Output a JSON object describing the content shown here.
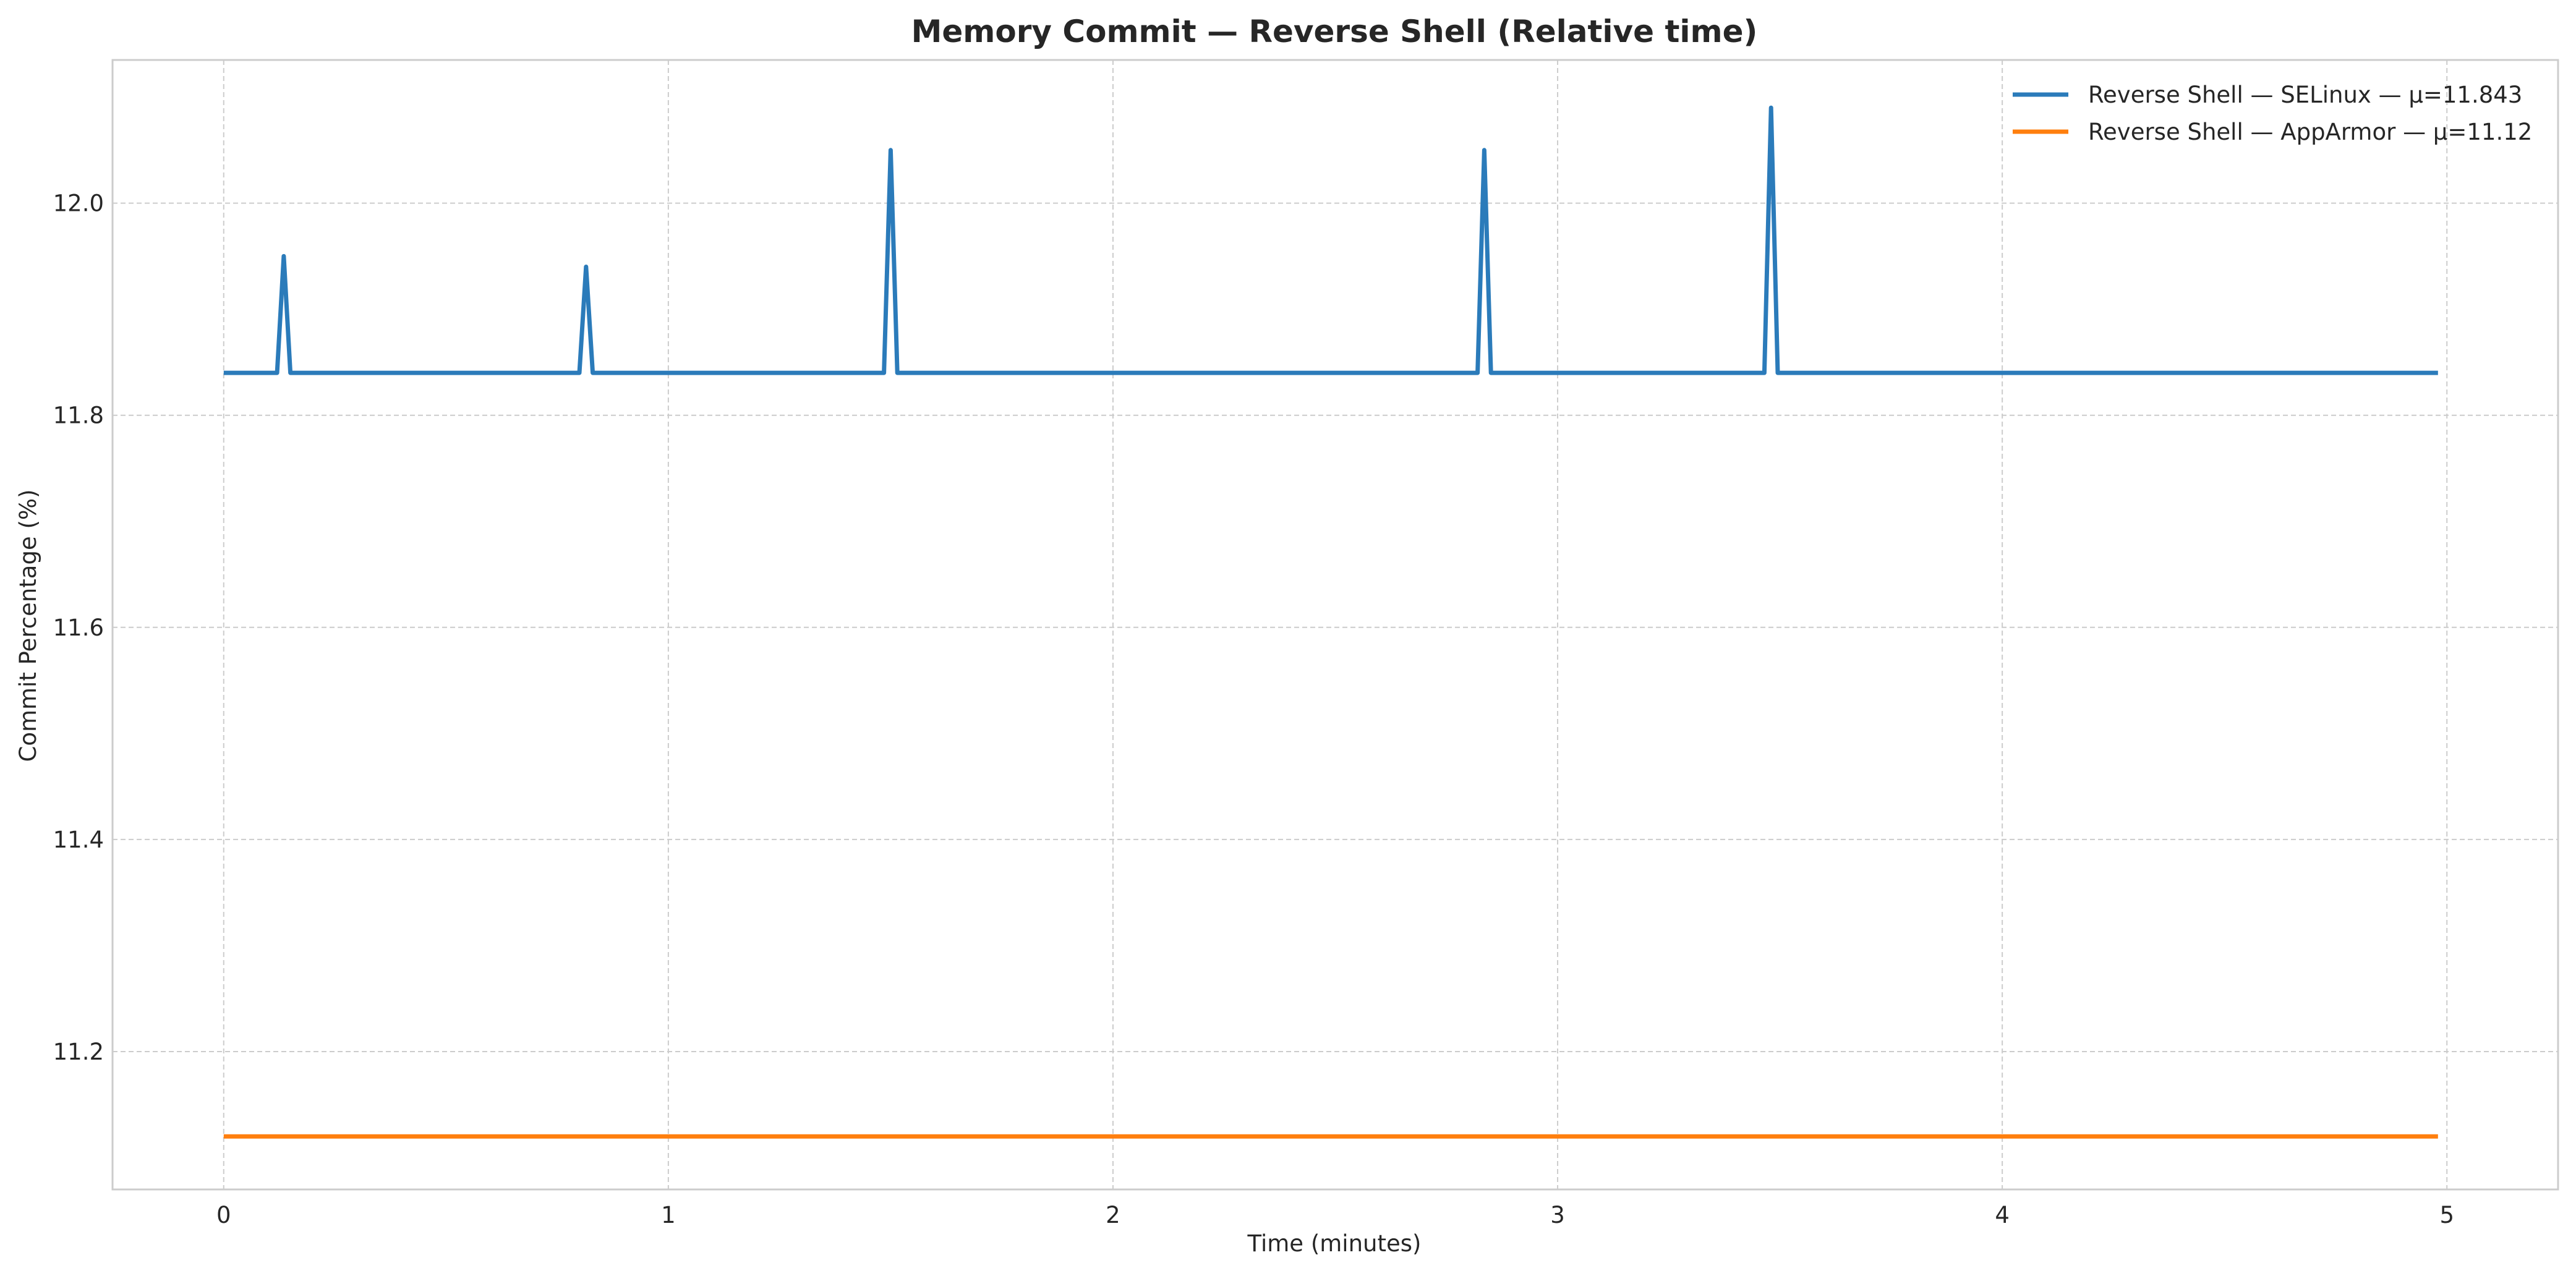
{
  "chart_data": {
    "type": "line",
    "title": "Memory Commit — Reverse Shell (Relative time)",
    "xlabel": "Time (minutes)",
    "ylabel": "Commit Percentage (%)",
    "xlim": [
      -0.25,
      5.25
    ],
    "ylim": [
      11.07,
      12.135
    ],
    "x_ticks": [
      0,
      1,
      2,
      3,
      4,
      5
    ],
    "y_ticks": [
      11.2,
      11.4,
      11.6,
      11.8,
      12.0
    ],
    "y_tick_labels": [
      "11.2",
      "11.4",
      "11.6",
      "11.8",
      "12.0"
    ],
    "grid": true,
    "legend_position": "top-right",
    "series": [
      {
        "name": "Reverse Shell — SELinux — μ=11.843",
        "color": "#2b7bba",
        "x": [
          0,
          0.12,
          0.135,
          0.15,
          0.8,
          0.815,
          0.83,
          1.485,
          1.5,
          1.515,
          2.82,
          2.835,
          2.85,
          3.465,
          3.48,
          3.495,
          4.98
        ],
        "y": [
          11.84,
          11.84,
          11.95,
          11.84,
          11.84,
          11.94,
          11.84,
          11.84,
          12.05,
          11.84,
          11.84,
          12.05,
          11.84,
          11.84,
          12.09,
          11.84,
          11.84
        ]
      },
      {
        "name": "Reverse Shell — AppArmor — μ=11.12",
        "color": "#ff7f0e",
        "x": [
          0,
          4.98
        ],
        "y": [
          11.12,
          11.12
        ]
      }
    ]
  }
}
